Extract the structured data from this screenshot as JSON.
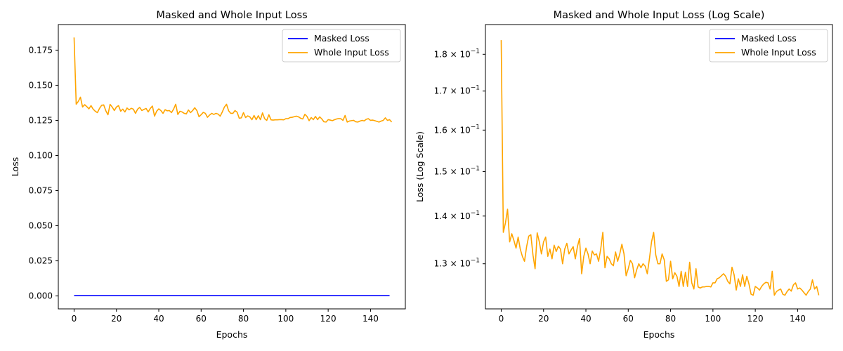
{
  "chart_data": [
    {
      "type": "line",
      "title": "Masked and Whole Input Loss",
      "xlabel": "Epochs",
      "ylabel": "Loss",
      "yscale": "linear",
      "xlim": [
        -7.45,
        156.45
      ],
      "ylim": [
        -0.0092,
        0.1932
      ],
      "x_ticks": [
        0,
        20,
        40,
        60,
        80,
        100,
        120,
        140
      ],
      "y_ticks": [
        0.0,
        0.025,
        0.05,
        0.075,
        0.1,
        0.125,
        0.15,
        0.175
      ],
      "y_tick_labels": [
        "0.000",
        "0.025",
        "0.050",
        "0.075",
        "0.100",
        "0.125",
        "0.150",
        "0.175"
      ],
      "grid": false,
      "legend_position": "top-right",
      "series": [
        {
          "name": "Masked Loss",
          "color": "#0000ff",
          "x_start": 0,
          "x_step": 1,
          "values": [
            0.0002,
            0.0002,
            0.0002,
            0.0002,
            0.0002,
            0.0002,
            0.0002,
            0.0002,
            0.0002,
            0.0002,
            0.0002,
            0.0002,
            0.0002,
            0.0002,
            0.0002,
            0.0002,
            0.0002,
            0.0002,
            0.0002,
            0.0002,
            0.0002,
            0.0002,
            0.0002,
            0.0002,
            0.0002,
            0.0002,
            0.0002,
            0.0002,
            0.0002,
            0.0002,
            0.0002,
            0.0002,
            0.0002,
            0.0002,
            0.0002,
            0.0002,
            0.0002,
            0.0002,
            0.0002,
            0.0002,
            0.0002,
            0.0002,
            0.0002,
            0.0002,
            0.0002,
            0.0002,
            0.0002,
            0.0002,
            0.0002,
            0.0002,
            0.0002,
            0.0002,
            0.0002,
            0.0002,
            0.0002,
            0.0002,
            0.0002,
            0.0002,
            0.0002,
            0.0002,
            0.0002,
            0.0002,
            0.0002,
            0.0002,
            0.0002,
            0.0002,
            0.0002,
            0.0002,
            0.0002,
            0.0002,
            0.0002,
            0.0002,
            0.0002,
            0.0002,
            0.0002,
            0.0002,
            0.0002,
            0.0002,
            0.0002,
            0.0002,
            0.0002,
            0.0002,
            0.0002,
            0.0002,
            0.0002,
            0.0002,
            0.0002,
            0.0002,
            0.0002,
            0.0002,
            0.0002,
            0.0002,
            0.0002,
            0.0002,
            0.0002,
            0.0002,
            0.0002,
            0.0002,
            0.0002,
            0.0002,
            0.0002,
            0.0002,
            0.0002,
            0.0002,
            0.0002,
            0.0002,
            0.0002,
            0.0002,
            0.0002,
            0.0002,
            0.0002,
            0.0002,
            0.0002,
            0.0002,
            0.0002,
            0.0002,
            0.0002,
            0.0002,
            0.0002,
            0.0002,
            0.0002,
            0.0002,
            0.0002,
            0.0002,
            0.0002,
            0.0002,
            0.0002,
            0.0002,
            0.0002,
            0.0002,
            0.0002,
            0.0002,
            0.0002,
            0.0002,
            0.0002,
            0.0002,
            0.0002,
            0.0002,
            0.0002,
            0.0002,
            0.0002,
            0.0002,
            0.0002,
            0.0002,
            0.0002,
            0.0002,
            0.0002,
            0.0002,
            0.0002,
            0.0002
          ]
        },
        {
          "name": "Whole Input Loss",
          "color": "#ffa500",
          "x_start": 0,
          "x_step": 1,
          "values": [
            0.184,
            0.1365,
            0.1385,
            0.1415,
            0.1345,
            0.1362,
            0.1348,
            0.1332,
            0.1355,
            0.133,
            0.1315,
            0.1305,
            0.1335,
            0.1357,
            0.136,
            0.1318,
            0.129,
            0.1364,
            0.1345,
            0.132,
            0.1345,
            0.1355,
            0.1315,
            0.133,
            0.131,
            0.1338,
            0.1325,
            0.1336,
            0.133,
            0.13,
            0.133,
            0.1342,
            0.132,
            0.1328,
            0.1335,
            0.131,
            0.1335,
            0.1352,
            0.128,
            0.1315,
            0.1332,
            0.132,
            0.13,
            0.1326,
            0.1318,
            0.132,
            0.1305,
            0.133,
            0.1365,
            0.1292,
            0.1315,
            0.131,
            0.13,
            0.1296,
            0.1324,
            0.1305,
            0.132,
            0.134,
            0.132,
            0.1276,
            0.129,
            0.1307,
            0.13,
            0.1272,
            0.1288,
            0.13,
            0.1292,
            0.13,
            0.1295,
            0.128,
            0.131,
            0.1345,
            0.1365,
            0.1318,
            0.13,
            0.13,
            0.132,
            0.1308,
            0.1265,
            0.1268,
            0.1305,
            0.127,
            0.1282,
            0.1275,
            0.1255,
            0.1285,
            0.1255,
            0.1283,
            0.1255,
            0.1303,
            0.1262,
            0.125,
            0.129,
            0.1254,
            0.1252,
            0.1254,
            0.1254,
            0.1255,
            0.1255,
            0.1254,
            0.1262,
            0.1262,
            0.127,
            0.1272,
            0.1276,
            0.128,
            0.1275,
            0.1265,
            0.126,
            0.1293,
            0.1278,
            0.1248,
            0.127,
            0.1255,
            0.1278,
            0.1255,
            0.1275,
            0.126,
            0.124,
            0.1238,
            0.1255,
            0.1252,
            0.1248,
            0.1255,
            0.126,
            0.1263,
            0.1262,
            0.125,
            0.1285,
            0.1238,
            0.1245,
            0.1248,
            0.125,
            0.124,
            0.1238,
            0.1245,
            0.125,
            0.1246,
            0.1258,
            0.1262,
            0.125,
            0.1252,
            0.1248,
            0.1243,
            0.1238,
            0.1245,
            0.125,
            0.1268,
            0.125,
            0.1255,
            0.1238
          ]
        }
      ]
    },
    {
      "type": "line",
      "title": "Masked and Whole Input Loss (Log Scale)",
      "xlabel": "Epochs",
      "ylabel": "Loss (Log Scale)",
      "yscale": "log",
      "xlim": [
        -7.45,
        156.45
      ],
      "ylim": [
        0.1212,
        0.1885
      ],
      "x_ticks": [
        0,
        20,
        40,
        60,
        80,
        100,
        120,
        140
      ],
      "y_ticks": [
        0.13,
        0.14,
        0.15,
        0.16,
        0.17,
        0.18
      ],
      "y_tick_mantissas": [
        "1.3",
        "1.4",
        "1.5",
        "1.6",
        "1.7",
        "1.8"
      ],
      "y_tick_base": "10",
      "y_tick_exp": "−1",
      "grid": false,
      "legend_position": "top-right",
      "series": [
        {
          "name": "Masked Loss",
          "color": "#0000ff",
          "x_start": 0,
          "x_step": 1,
          "values": []
        },
        {
          "name": "Whole Input Loss",
          "color": "#ffa500",
          "x_start": 0,
          "x_step": 1,
          "values": "same_as_left"
        }
      ]
    }
  ]
}
